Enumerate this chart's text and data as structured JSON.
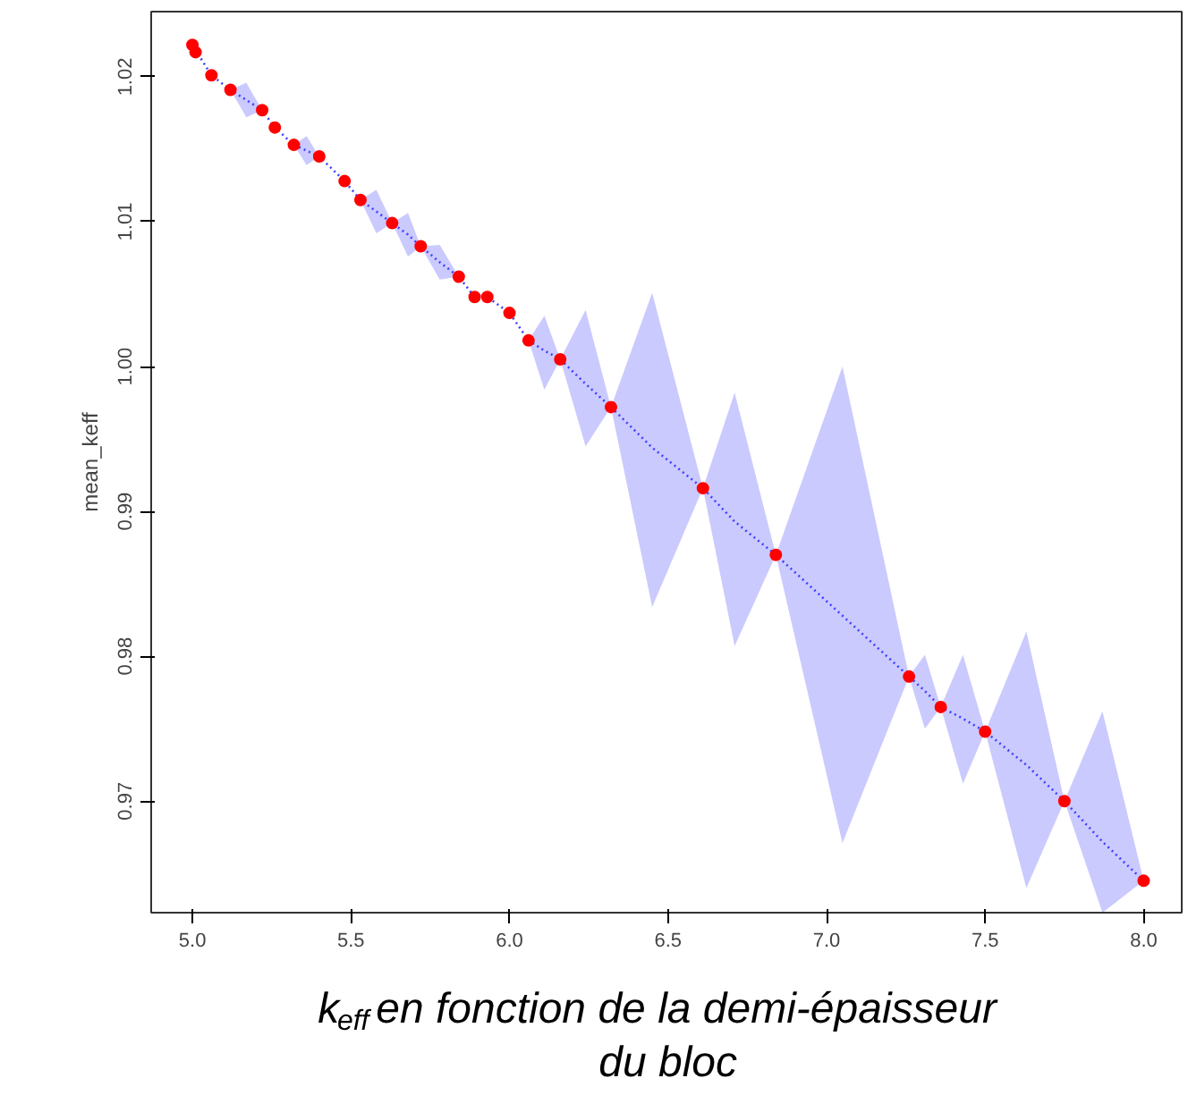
{
  "chart_data": {
    "type": "line",
    "ylabel": "mean_keff",
    "annotations": [
      "k$_{eff}$ en fonction de la demi-épaisseur du bloc"
    ],
    "xlim": [
      4.87,
      8.12
    ],
    "ylim": [
      0.9623,
      1.0245
    ],
    "xticks": [
      {
        "value": 5,
        "label": "5.0"
      },
      5.5,
      {
        "value": 6,
        "label": "6.0"
      },
      6.5,
      {
        "value": 7,
        "label": "7.0"
      },
      7.5,
      {
        "value": 8,
        "label": "8.0"
      }
    ],
    "yticks": [
      0.97,
      0.98,
      0.99,
      {
        "value": 1,
        "label": "1.00"
      },
      1.01,
      1.02
    ],
    "grid": false,
    "series": [
      {
        "color": "#4040ff",
        "line_style": "dotted",
        "marker": "none",
        "x": [
          5.0,
          5.06,
          5.12,
          5.17,
          5.22,
          5.26,
          5.32,
          5.36,
          5.4,
          5.48,
          5.53,
          5.58,
          5.63,
          5.68,
          5.72,
          5.78,
          5.84,
          5.89,
          5.93,
          6.0,
          6.06,
          6.11,
          6.16,
          6.24,
          6.32,
          6.45,
          6.61,
          6.71,
          6.84,
          7.05,
          7.26,
          7.31,
          7.36,
          7.43,
          7.5,
          7.63,
          7.75,
          7.87,
          8.0
        ],
        "values": [
          1.0222,
          1.0201,
          1.0191,
          1.0184,
          1.0177,
          1.0165,
          1.0153,
          1.0149,
          1.0145,
          1.0128,
          1.0115,
          1.0107,
          1.0099,
          1.0091,
          1.0083,
          1.0072,
          1.0062,
          1.0048,
          1.0048,
          1.0037,
          1.0018,
          1.0011,
          1.0005,
          0.9988,
          0.9972,
          0.9944,
          0.9916,
          0.9893,
          0.987,
          0.9828,
          0.9786,
          0.9776,
          0.9765,
          0.9757,
          0.9748,
          0.9725,
          0.97,
          0.9672,
          0.9645
        ],
        "lower": [
          1.0222,
          1.0201,
          1.0191,
          1.0172,
          1.0177,
          1.0165,
          1.0153,
          1.0139,
          1.0145,
          1.0128,
          1.0115,
          1.0092,
          1.0099,
          1.0076,
          1.0083,
          1.006,
          1.0062,
          1.0048,
          1.0048,
          1.0037,
          1.0018,
          0.9984,
          1.0005,
          0.9945,
          0.9972,
          0.9834,
          0.9916,
          0.9807,
          0.987,
          0.9671,
          0.9786,
          0.975,
          0.9765,
          0.9712,
          0.9748,
          0.964,
          0.97,
          0.9623,
          0.9645
        ],
        "upper": [
          1.0222,
          1.0201,
          1.0191,
          1.0196,
          1.0177,
          1.0165,
          1.0153,
          1.0159,
          1.0145,
          1.0128,
          1.0115,
          1.0122,
          1.0099,
          1.0106,
          1.0083,
          1.0084,
          1.0062,
          1.0048,
          1.0048,
          1.0037,
          1.0018,
          1.0035,
          1.0005,
          1.0039,
          0.9972,
          1.0051,
          0.9916,
          0.9982,
          0.987,
          1.0,
          0.9786,
          0.9801,
          0.9765,
          0.9801,
          0.9748,
          0.9817,
          0.97,
          0.9762,
          0.9645
        ]
      },
      {
        "type": "scatter",
        "color": "#ff0000",
        "marker": "circle",
        "x": [
          5.0,
          5.01,
          5.06,
          5.12,
          5.22,
          5.26,
          5.32,
          5.4,
          5.48,
          5.53,
          5.63,
          5.72,
          5.84,
          5.89,
          5.93,
          6.0,
          6.06,
          6.16,
          6.32,
          6.61,
          6.84,
          7.26,
          7.36,
          7.5,
          7.75,
          8.0
        ],
        "values": [
          1.0222,
          1.0217,
          1.0201,
          1.0191,
          1.0177,
          1.0165,
          1.0153,
          1.0145,
          1.0128,
          1.0115,
          1.0099,
          1.0083,
          1.0062,
          1.0048,
          1.0048,
          1.0037,
          1.0018,
          1.0005,
          0.9972,
          0.9916,
          0.987,
          0.9786,
          0.9765,
          0.9748,
          0.97,
          0.9645
        ]
      }
    ]
  }
}
